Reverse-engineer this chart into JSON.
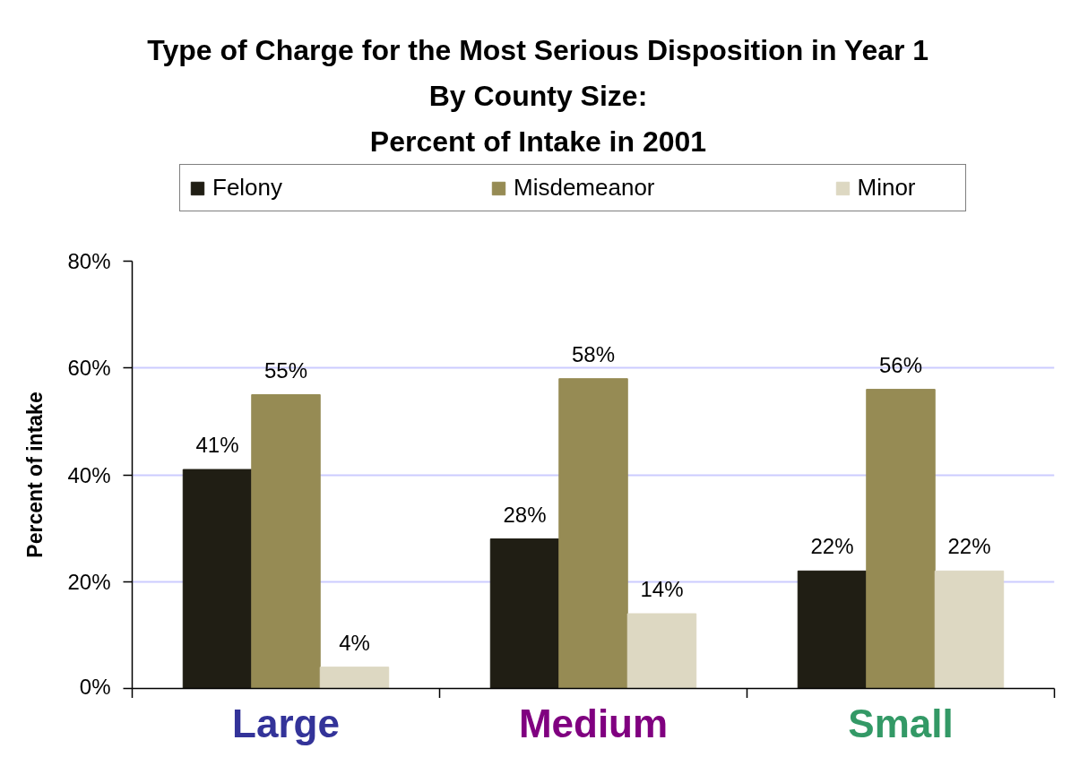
{
  "chart_data": {
    "type": "bar",
    "title": "Type of Charge for the Most Serious Disposition in Year 1\nBy County Size:\nPercent of Intake in 2001",
    "ylabel": "Percent of intake",
    "categories": [
      "Large",
      "Medium",
      "Small"
    ],
    "series": [
      {
        "name": "Felony",
        "color": "#201e14",
        "values": [
          41,
          28,
          22
        ],
        "value_labels": [
          "41%",
          "28%",
          "22%"
        ]
      },
      {
        "name": "Misdemeanor",
        "color": "#968b54",
        "values": [
          55,
          58,
          56
        ],
        "value_labels": [
          "55%",
          "58%",
          "56%"
        ]
      },
      {
        "name": "Minor",
        "color": "#ddd8c2",
        "values": [
          4,
          14,
          22
        ],
        "value_labels": [
          "4%",
          "14%",
          "22%"
        ]
      }
    ],
    "ylim": [
      0,
      80
    ],
    "yticks": [
      {
        "value": 0,
        "label": "0%"
      },
      {
        "value": 20,
        "label": "20%"
      },
      {
        "value": 40,
        "label": "40%"
      },
      {
        "value": 60,
        "label": "60%"
      },
      {
        "value": 80,
        "label": "80%"
      }
    ],
    "grid": "y",
    "legend": "top"
  }
}
